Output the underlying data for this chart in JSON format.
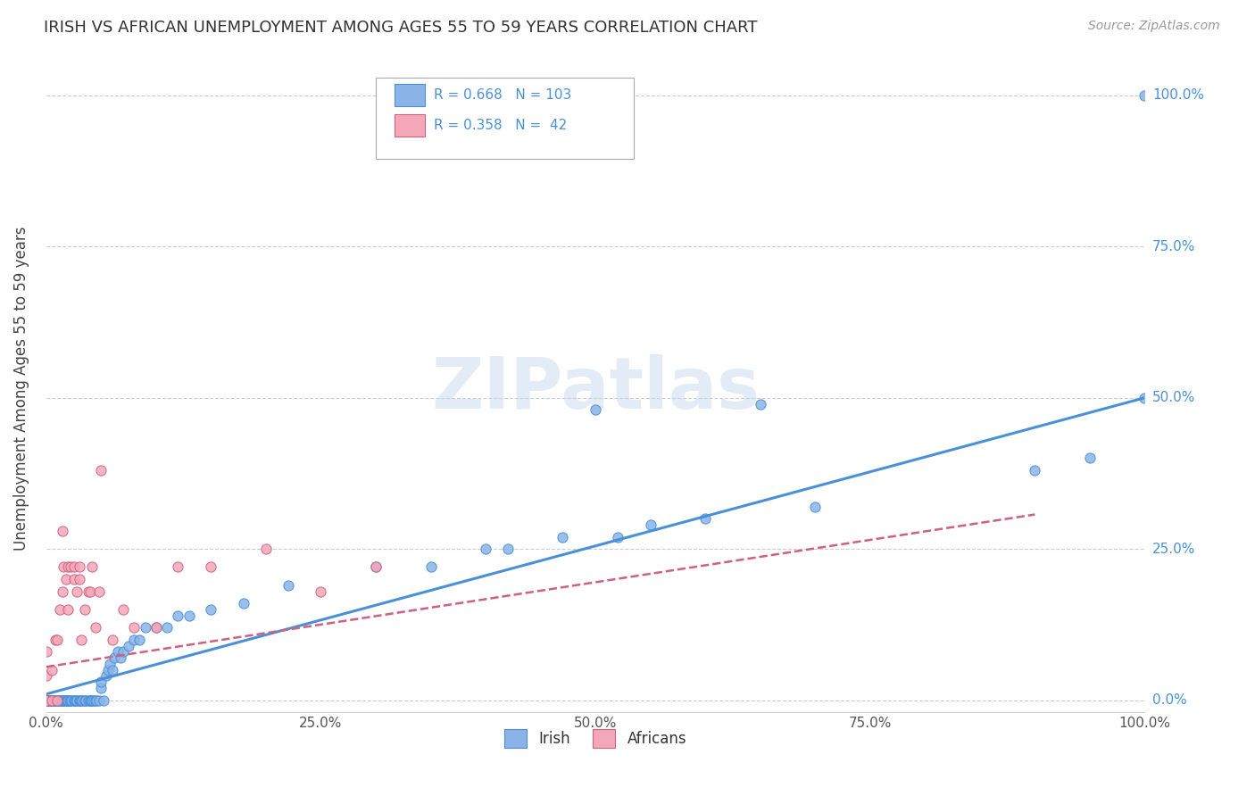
{
  "title": "IRISH VS AFRICAN UNEMPLOYMENT AMONG AGES 55 TO 59 YEARS CORRELATION CHART",
  "source": "Source: ZipAtlas.com",
  "ylabel": "Unemployment Among Ages 55 to 59 years",
  "xlim": [
    0,
    1.0
  ],
  "ylim": [
    -0.02,
    1.05
  ],
  "irish_color": "#8ab4e8",
  "african_color": "#f4a7b9",
  "irish_line_color": "#4a90d9",
  "african_edge_color": "#d06080",
  "african_line_color": "#d06080",
  "irish_R": 0.668,
  "irish_N": 103,
  "african_R": 0.358,
  "african_N": 42,
  "legend_irish_label": "Irish",
  "legend_african_label": "Africans",
  "watermark": "ZIPatlas",
  "background_color": "#ffffff",
  "irish_x": [
    0.0,
    0.0,
    0.0,
    0.0,
    0.0,
    0.0,
    0.0,
    0.0,
    0.0,
    0.0,
    0.002,
    0.003,
    0.004,
    0.005,
    0.005,
    0.005,
    0.005,
    0.006,
    0.007,
    0.008,
    0.008,
    0.009,
    0.01,
    0.01,
    0.01,
    0.01,
    0.01,
    0.012,
    0.013,
    0.014,
    0.015,
    0.015,
    0.015,
    0.016,
    0.017,
    0.018,
    0.019,
    0.02,
    0.02,
    0.02,
    0.021,
    0.022,
    0.023,
    0.025,
    0.025,
    0.026,
    0.027,
    0.028,
    0.03,
    0.03,
    0.031,
    0.032,
    0.033,
    0.035,
    0.035,
    0.036,
    0.038,
    0.04,
    0.04,
    0.04,
    0.041,
    0.042,
    0.043,
    0.045,
    0.046,
    0.048,
    0.05,
    0.05,
    0.052,
    0.055,
    0.056,
    0.058,
    0.06,
    0.062,
    0.065,
    0.068,
    0.07,
    0.075,
    0.08,
    0.085,
    0.09,
    0.1,
    0.11,
    0.12,
    0.13,
    0.15,
    0.18,
    0.22,
    0.3,
    0.35,
    0.4,
    0.42,
    0.47,
    0.5,
    0.52,
    0.55,
    0.6,
    0.65,
    0.7,
    0.9,
    0.95,
    1.0,
    1.0
  ],
  "irish_y": [
    0.0,
    0.0,
    0.0,
    0.0,
    0.0,
    0.0,
    0.0,
    0.0,
    0.0,
    0.0,
    0.0,
    0.0,
    0.0,
    0.0,
    0.0,
    0.0,
    0.0,
    0.0,
    0.0,
    0.0,
    0.0,
    0.0,
    0.0,
    0.0,
    0.0,
    0.0,
    0.0,
    0.0,
    0.0,
    0.0,
    0.0,
    0.0,
    0.0,
    0.0,
    0.0,
    0.0,
    0.0,
    0.0,
    0.0,
    0.0,
    0.0,
    0.0,
    0.0,
    0.0,
    0.0,
    0.0,
    0.0,
    0.0,
    0.0,
    0.0,
    0.0,
    0.0,
    0.0,
    0.0,
    0.0,
    0.0,
    0.0,
    0.0,
    0.0,
    0.0,
    0.0,
    0.0,
    0.0,
    0.0,
    0.0,
    0.0,
    0.02,
    0.03,
    0.0,
    0.04,
    0.05,
    0.06,
    0.05,
    0.07,
    0.08,
    0.07,
    0.08,
    0.09,
    0.1,
    0.1,
    0.12,
    0.12,
    0.12,
    0.14,
    0.14,
    0.15,
    0.16,
    0.19,
    0.22,
    0.22,
    0.25,
    0.25,
    0.27,
    0.48,
    0.27,
    0.29,
    0.3,
    0.49,
    0.32,
    0.38,
    0.4,
    0.5,
    1.0
  ],
  "african_x": [
    0.0,
    0.0,
    0.0,
    0.0,
    0.0,
    0.0,
    0.0,
    0.005,
    0.005,
    0.008,
    0.01,
    0.01,
    0.012,
    0.015,
    0.015,
    0.016,
    0.018,
    0.02,
    0.02,
    0.022,
    0.025,
    0.025,
    0.028,
    0.03,
    0.03,
    0.032,
    0.035,
    0.038,
    0.04,
    0.042,
    0.045,
    0.048,
    0.05,
    0.06,
    0.07,
    0.08,
    0.1,
    0.12,
    0.15,
    0.2,
    0.25,
    0.3
  ],
  "african_y": [
    0.0,
    0.0,
    0.0,
    0.0,
    0.0,
    0.04,
    0.08,
    0.0,
    0.05,
    0.1,
    0.0,
    0.1,
    0.15,
    0.18,
    0.28,
    0.22,
    0.2,
    0.15,
    0.22,
    0.22,
    0.2,
    0.22,
    0.18,
    0.2,
    0.22,
    0.1,
    0.15,
    0.18,
    0.18,
    0.22,
    0.12,
    0.18,
    0.38,
    0.1,
    0.15,
    0.12,
    0.12,
    0.22,
    0.22,
    0.25,
    0.18,
    0.22
  ],
  "irish_slope": 0.49,
  "irish_intercept": 0.01,
  "irish_line_x": [
    0.0,
    1.0
  ],
  "irish_line_y": [
    0.01,
    0.5
  ],
  "african_slope": 0.28,
  "african_intercept": 0.055,
  "african_line_x": [
    0.0,
    0.9
  ],
  "african_line_y": [
    0.055,
    0.307
  ]
}
